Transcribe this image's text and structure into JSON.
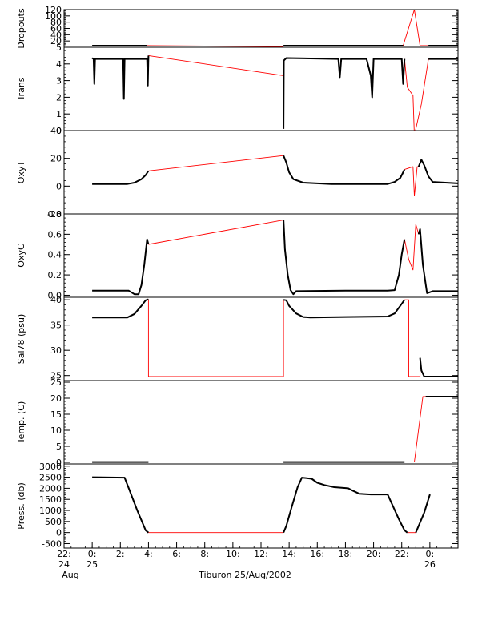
{
  "chart_data": {
    "type": "line",
    "caption": "Tiburon 25/Aug/2002",
    "colors": {
      "data": "#000000",
      "gap": "#ff0000"
    },
    "x_ticks": [
      {
        "h": -2,
        "l1": "22:",
        "l2": "24",
        "l3": "Aug"
      },
      {
        "h": 0,
        "l1": "0:",
        "l2": "25",
        "l3": ""
      },
      {
        "h": 2,
        "l1": "2:",
        "l2": "",
        "l3": ""
      },
      {
        "h": 4,
        "l1": "4:",
        "l2": "",
        "l3": ""
      },
      {
        "h": 6,
        "l1": "6:",
        "l2": "",
        "l3": ""
      },
      {
        "h": 8,
        "l1": "8:",
        "l2": "",
        "l3": ""
      },
      {
        "h": 10,
        "l1": "10:",
        "l2": "",
        "l3": ""
      },
      {
        "h": 12,
        "l1": "12:",
        "l2": "",
        "l3": ""
      },
      {
        "h": 14,
        "l1": "14:",
        "l2": "",
        "l3": ""
      },
      {
        "h": 16,
        "l1": "16:",
        "l2": "",
        "l3": ""
      },
      {
        "h": 18,
        "l1": "18:",
        "l2": "",
        "l3": ""
      },
      {
        "h": 20,
        "l1": "20:",
        "l2": "",
        "l3": ""
      },
      {
        "h": 22,
        "l1": "22:",
        "l2": "",
        "l3": ""
      },
      {
        "h": 24,
        "l1": "0:",
        "l2": "26",
        "l3": ""
      }
    ],
    "xlim": [
      -2,
      26
    ],
    "panels": [
      {
        "name": "dropouts",
        "ylabel": "Dropouts",
        "ylim": [
          0,
          120
        ],
        "ticks": [
          0,
          20,
          40,
          60,
          80,
          100,
          120
        ],
        "tick_labels": [
          "20",
          "40",
          "60",
          "80",
          "100",
          "120"
        ],
        "black": [
          [
            [
              0,
              5
            ],
            [
              3.9,
              5
            ]
          ],
          [
            [
              13.6,
              5
            ],
            [
              22.1,
              5
            ]
          ],
          [
            [
              23.9,
              5
            ],
            [
              26,
              5
            ]
          ]
        ],
        "red": [
          [
            [
              3.9,
              5
            ],
            [
              13.6,
              2
            ]
          ],
          [
            [
              22.1,
              5
            ],
            [
              22.9,
              120
            ],
            [
              23.3,
              5
            ],
            [
              23.9,
              5
            ]
          ]
        ]
      },
      {
        "name": "trans",
        "ylabel": "Trans",
        "ylim": [
          0,
          5
        ],
        "ticks": [
          0,
          1,
          2,
          3,
          4,
          5
        ],
        "tick_labels": [
          "0",
          "1",
          "2",
          "3",
          "4",
          "5"
        ],
        "black": [
          [
            [
              0,
              4.35
            ],
            [
              0.1,
              4.3
            ],
            [
              0.15,
              2.8
            ],
            [
              0.2,
              4.3
            ],
            [
              2.2,
              4.3
            ],
            [
              2.25,
              1.9
            ],
            [
              2.3,
              4.3
            ],
            [
              3.9,
              4.3
            ],
            [
              3.95,
              2.7
            ],
            [
              4.0,
              4.5
            ]
          ],
          [
            [
              13.6,
              0.1
            ],
            [
              13.62,
              4.2
            ],
            [
              13.8,
              4.35
            ],
            [
              17.5,
              4.3
            ],
            [
              17.6,
              3.2
            ],
            [
              17.7,
              4.3
            ],
            [
              19.5,
              4.3
            ],
            [
              19.8,
              3.3
            ],
            [
              19.9,
              2.0
            ],
            [
              20.0,
              4.3
            ],
            [
              22.0,
              4.3
            ],
            [
              22.1,
              2.8
            ],
            [
              22.2,
              4.3
            ]
          ],
          [
            [
              23.9,
              4.3
            ],
            [
              26,
              4.3
            ]
          ]
        ],
        "red": [
          [
            [
              4.0,
              4.5
            ],
            [
              13.6,
              3.3
            ],
            [
              13.6,
              0.1
            ]
          ],
          [
            [
              22.2,
              4.3
            ],
            [
              22.4,
              2.6
            ],
            [
              22.8,
              2.1
            ],
            [
              22.9,
              -0.3
            ],
            [
              23.4,
              1.6
            ],
            [
              23.9,
              4.3
            ]
          ]
        ]
      },
      {
        "name": "oxyt",
        "ylabel": "OxyT",
        "ylim": [
          -20,
          40
        ],
        "ticks": [
          -20,
          0,
          20,
          40
        ],
        "tick_labels": [
          "-20",
          "0",
          "20",
          "40"
        ],
        "black": [
          [
            [
              0,
              1.5
            ],
            [
              2.5,
              1.5
            ],
            [
              3.0,
              2.5
            ],
            [
              3.5,
              5
            ],
            [
              3.8,
              8
            ],
            [
              4.0,
              11
            ]
          ],
          [
            [
              13.6,
              22
            ],
            [
              13.8,
              17
            ],
            [
              14.0,
              10
            ],
            [
              14.3,
              5
            ],
            [
              15.0,
              2.5
            ],
            [
              17.0,
              1.5
            ],
            [
              21.0,
              1.5
            ],
            [
              21.5,
              3
            ],
            [
              21.9,
              6
            ],
            [
              22.1,
              10
            ],
            [
              22.2,
              12
            ]
          ],
          [
            [
              23.2,
              14
            ],
            [
              23.4,
              19
            ],
            [
              23.6,
              15
            ],
            [
              23.9,
              7
            ],
            [
              24.2,
              3
            ],
            [
              26,
              2
            ]
          ]
        ],
        "red": [
          [
            [
              4.0,
              11
            ],
            [
              13.6,
              22
            ]
          ],
          [
            [
              22.2,
              12
            ],
            [
              22.5,
              13
            ],
            [
              22.8,
              14
            ],
            [
              22.9,
              -7
            ],
            [
              23.1,
              14
            ],
            [
              23.2,
              14
            ]
          ]
        ]
      },
      {
        "name": "oxyc",
        "ylabel": "OxyC",
        "ylim": [
          -0.02,
          0.8
        ],
        "ticks": [
          0,
          0.2,
          0.4,
          0.6,
          0.8
        ],
        "tick_labels": [
          "0.0",
          "0.2",
          "0.4",
          "0.6",
          "0.8"
        ],
        "black": [
          [
            [
              0,
              0.045
            ],
            [
              2.6,
              0.045
            ],
            [
              3.0,
              0.01
            ],
            [
              3.3,
              0.01
            ],
            [
              3.5,
              0.1
            ],
            [
              3.7,
              0.3
            ],
            [
              3.9,
              0.55
            ],
            [
              4.0,
              0.5
            ]
          ],
          [
            [
              13.6,
              0.74
            ],
            [
              13.7,
              0.45
            ],
            [
              13.9,
              0.2
            ],
            [
              14.1,
              0.05
            ],
            [
              14.3,
              0.01
            ],
            [
              14.5,
              0.04
            ],
            [
              18.0,
              0.045
            ],
            [
              21.0,
              0.045
            ],
            [
              21.5,
              0.05
            ],
            [
              21.8,
              0.2
            ],
            [
              22.0,
              0.4
            ],
            [
              22.2,
              0.55
            ]
          ],
          [
            [
              23.2,
              0.6
            ],
            [
              23.3,
              0.65
            ],
            [
              23.5,
              0.3
            ],
            [
              23.8,
              0.02
            ],
            [
              24.2,
              0.04
            ],
            [
              26,
              0.04
            ]
          ]
        ],
        "red": [
          [
            [
              4.0,
              0.5
            ],
            [
              13.6,
              0.74
            ]
          ],
          [
            [
              22.2,
              0.55
            ],
            [
              22.5,
              0.35
            ],
            [
              22.8,
              0.25
            ],
            [
              23.0,
              0.7
            ],
            [
              23.2,
              0.6
            ]
          ]
        ]
      },
      {
        "name": "sal",
        "ylabel": "Sal78 (psu)",
        "ylim": [
          24,
          40.5
        ],
        "ticks": [
          25,
          30,
          35,
          40
        ],
        "tick_labels": [
          "25",
          "30",
          "35",
          "40"
        ],
        "black": [
          [
            [
              0,
              36.5
            ],
            [
              2.5,
              36.5
            ],
            [
              3.0,
              37.2
            ],
            [
              3.5,
              38.8
            ],
            [
              3.8,
              39.9
            ],
            [
              4.0,
              40.1
            ]
          ],
          [
            [
              13.6,
              40
            ],
            [
              13.8,
              39.9
            ],
            [
              14.0,
              38.8
            ],
            [
              14.5,
              37.3
            ],
            [
              15.0,
              36.6
            ],
            [
              15.5,
              36.5
            ],
            [
              18.0,
              36.6
            ],
            [
              21.0,
              36.7
            ],
            [
              21.5,
              37.3
            ],
            [
              22.0,
              39.2
            ],
            [
              22.2,
              40
            ]
          ],
          [
            [
              23.3,
              28.5
            ],
            [
              23.4,
              26
            ],
            [
              23.6,
              24.8
            ],
            [
              26,
              24.8
            ]
          ]
        ],
        "red": [
          [
            [
              4.0,
              40.1
            ],
            [
              4.0,
              24.8
            ],
            [
              13.6,
              24.8
            ],
            [
              13.6,
              40
            ]
          ],
          [
            [
              22.2,
              40
            ],
            [
              22.5,
              40
            ],
            [
              22.5,
              24.8
            ],
            [
              23.3,
              24.8
            ],
            [
              23.3,
              28.5
            ]
          ]
        ]
      },
      {
        "name": "temp",
        "ylabel": "Temp. (C)",
        "ylim": [
          -0.5,
          25.5
        ],
        "ticks": [
          0,
          5,
          10,
          15,
          20,
          25
        ],
        "tick_labels": [
          "0",
          "5",
          "10",
          "15",
          "20",
          "25"
        ],
        "black": [
          [
            [
              0,
              0.1
            ],
            [
              4.0,
              0.1
            ]
          ],
          [
            [
              13.6,
              0.1
            ],
            [
              22.2,
              0.1
            ]
          ],
          [
            [
              23.7,
              20.5
            ],
            [
              26,
              20.5
            ]
          ]
        ],
        "red": [
          [
            [
              4.0,
              0.1
            ],
            [
              13.6,
              0.1
            ]
          ],
          [
            [
              22.2,
              0.1
            ],
            [
              22.9,
              0.1
            ],
            [
              23.5,
              20.5
            ],
            [
              23.7,
              20.5
            ]
          ]
        ]
      },
      {
        "name": "press",
        "ylabel": "Press. (db)",
        "ylim": [
          -700,
          3100
        ],
        "ticks": [
          -500,
          0,
          500,
          1000,
          1500,
          2000,
          2500,
          3000
        ],
        "tick_labels": [
          "-500",
          "0",
          "500",
          "1000",
          "1500",
          "2000",
          "2500",
          "3000"
        ],
        "black": [
          [
            [
              0,
              2500
            ],
            [
              2.3,
              2480
            ],
            [
              2.6,
              2000
            ],
            [
              3.2,
              1000
            ],
            [
              3.8,
              100
            ],
            [
              4.0,
              0
            ]
          ],
          [
            [
              13.6,
              0
            ],
            [
              13.8,
              300
            ],
            [
              14.2,
              1200
            ],
            [
              14.6,
              2050
            ],
            [
              14.9,
              2480
            ],
            [
              15.6,
              2430
            ],
            [
              16.0,
              2250
            ],
            [
              16.5,
              2150
            ],
            [
              17.2,
              2050
            ],
            [
              18.2,
              2000
            ],
            [
              18.5,
              1900
            ],
            [
              19.0,
              1750
            ],
            [
              19.8,
              1720
            ],
            [
              21.0,
              1720
            ],
            [
              21.3,
              1300
            ],
            [
              21.8,
              600
            ],
            [
              22.2,
              100
            ],
            [
              22.4,
              0
            ]
          ],
          [
            [
              23.0,
              0
            ],
            [
              23.2,
              300
            ],
            [
              23.6,
              900
            ],
            [
              24.0,
              1720
            ]
          ]
        ],
        "red": [
          [
            [
              4.0,
              0
            ],
            [
              13.6,
              0
            ]
          ],
          [
            [
              22.4,
              0
            ],
            [
              23.0,
              0
            ]
          ]
        ]
      }
    ]
  }
}
